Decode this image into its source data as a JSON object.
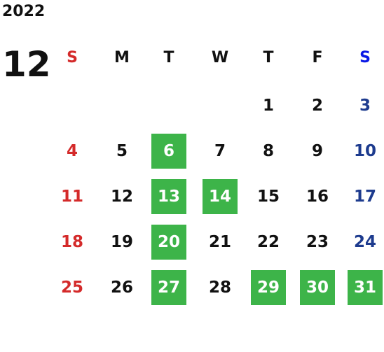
{
  "calendar": {
    "year": "2022",
    "month": "12",
    "weekdays": [
      "S",
      "M",
      "T",
      "W",
      "T",
      "F",
      "S"
    ],
    "weeks": [
      [
        null,
        null,
        null,
        null,
        1,
        2,
        3
      ],
      [
        4,
        5,
        6,
        7,
        8,
        9,
        10
      ],
      [
        11,
        12,
        13,
        14,
        15,
        16,
        17
      ],
      [
        18,
        19,
        20,
        21,
        22,
        23,
        24
      ],
      [
        25,
        26,
        27,
        28,
        29,
        30,
        31
      ]
    ],
    "highlighted_days": [
      6,
      13,
      14,
      20,
      27,
      29,
      30,
      31
    ]
  }
}
